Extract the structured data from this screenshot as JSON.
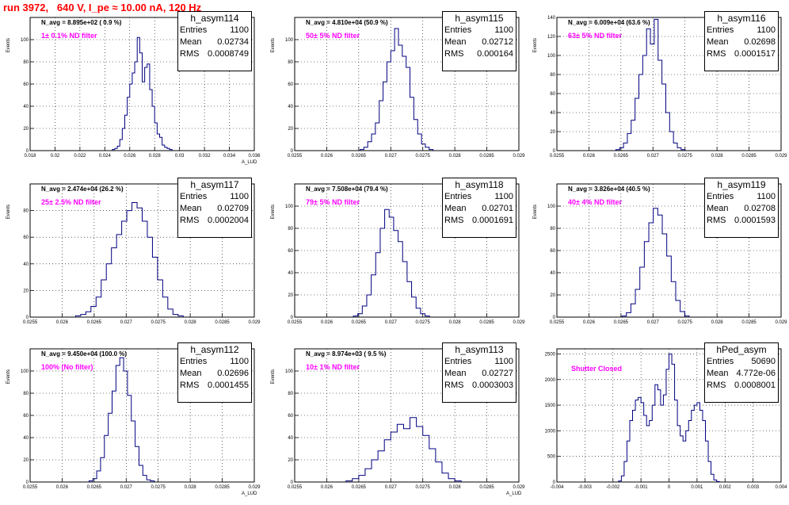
{
  "page_title": "run 3972,   640 V, I_pe ≈ 10.00 nA, 120 Hz",
  "stat_labels": {
    "entries": "Entries",
    "mean": "Mean",
    "rms": "RMS"
  },
  "colors": {
    "histogram": "#000080",
    "title": "#ff0000",
    "annotation": "#ff00ff",
    "grid": "#000000"
  },
  "chart_data": [
    {
      "type": "bar",
      "name": "h_asym114",
      "navg": "N_avg = 8.895e+02 ( 0.9 %)",
      "filter": "1± 0.1% ND filter",
      "entries": "1100",
      "mean": "0.02734",
      "rms": "0.0008749",
      "xlabel": "A_LUD",
      "ylabel": "Events",
      "xlim": [
        0.018,
        0.036
      ],
      "ylim": [
        0,
        120
      ],
      "x_ticks": [
        0.018,
        0.02,
        0.022,
        0.024,
        0.026,
        0.028,
        0.03,
        0.032,
        0.034,
        0.036
      ],
      "x_tick_labels": [
        "0.018",
        "0.02",
        "0.022",
        "0.024",
        "0.026",
        "0.028",
        "0.03",
        "0.032",
        "0.034",
        "0.036"
      ],
      "y_ticks": [
        0,
        20,
        40,
        60,
        80,
        100
      ],
      "y_tick_labels": [
        "0",
        "20",
        "40",
        "60",
        "80",
        "100"
      ],
      "grid": true,
      "hist_x": [
        0.0247,
        0.0249,
        0.0251,
        0.0253,
        0.0255,
        0.0257,
        0.0259,
        0.0261,
        0.0263,
        0.0265,
        0.0267,
        0.0269,
        0.0271,
        0.0273,
        0.0275,
        0.0277,
        0.0279,
        0.0281,
        0.0283,
        0.0285,
        0.0287,
        0.0289,
        0.0291,
        0.0293
      ],
      "hist_y": [
        1,
        2,
        4,
        10,
        20,
        32,
        48,
        60,
        70,
        80,
        102,
        88,
        62,
        75,
        78,
        55,
        40,
        25,
        15,
        12,
        5,
        3,
        2,
        1
      ]
    },
    {
      "type": "bar",
      "name": "h_asym115",
      "navg": "N_avg = 4.810e+04 (50.9 %)",
      "filter": "50± 5% ND filter",
      "entries": "1100",
      "mean": "0.02712",
      "rms": "0.000164",
      "xlabel": "",
      "ylabel": "Events",
      "xlim": [
        0.0255,
        0.029
      ],
      "ylim": [
        0,
        120
      ],
      "x_ticks": [
        0.0255,
        0.026,
        0.0265,
        0.027,
        0.0275,
        0.028,
        0.0285,
        0.029
      ],
      "x_tick_labels": [
        "0.0255",
        "0.026",
        "0.0265",
        "0.027",
        "0.0275",
        "0.028",
        "0.0285",
        "0.029"
      ],
      "y_ticks": [
        0,
        20,
        40,
        60,
        80,
        100
      ],
      "y_tick_labels": [
        "0",
        "20",
        "40",
        "60",
        "80",
        "100"
      ],
      "grid": true,
      "hist_x": [
        0.02655,
        0.02661,
        0.02667,
        0.02673,
        0.02679,
        0.02685,
        0.02691,
        0.02697,
        0.02703,
        0.02709,
        0.02715,
        0.02721,
        0.02727,
        0.02733,
        0.02739,
        0.02745,
        0.02751,
        0.02757,
        0.02763
      ],
      "hist_y": [
        1,
        3,
        8,
        15,
        25,
        45,
        62,
        80,
        90,
        110,
        95,
        85,
        75,
        48,
        28,
        15,
        6,
        3,
        1
      ]
    },
    {
      "type": "bar",
      "name": "h_asym116",
      "navg": "N_avg = 6.009e+04 (63.6 %)",
      "filter": "63± 5% ND filter",
      "entries": "1100",
      "mean": "0.02698",
      "rms": "0.0001517",
      "xlabel": "",
      "ylabel": "Events",
      "xlim": [
        0.0255,
        0.029
      ],
      "ylim": [
        0,
        140
      ],
      "x_ticks": [
        0.0255,
        0.026,
        0.0265,
        0.027,
        0.0275,
        0.028,
        0.0285,
        0.029
      ],
      "x_tick_labels": [
        "0.0255",
        "0.026",
        "0.0265",
        "0.027",
        "0.0275",
        "0.028",
        "0.0285",
        "0.029"
      ],
      "y_ticks": [
        0,
        20,
        40,
        60,
        80,
        100,
        120,
        140
      ],
      "y_tick_labels": [
        "0",
        "20",
        "40",
        "60",
        "80",
        "100",
        "120",
        "140"
      ],
      "grid": true,
      "hist_x": [
        0.02645,
        0.02651,
        0.02657,
        0.02663,
        0.02669,
        0.02675,
        0.02681,
        0.02687,
        0.02693,
        0.02699,
        0.02705,
        0.02711,
        0.02717,
        0.02723,
        0.02729,
        0.02735,
        0.02741,
        0.02747
      ],
      "hist_y": [
        1,
        3,
        8,
        18,
        32,
        55,
        80,
        100,
        128,
        112,
        138,
        95,
        70,
        40,
        20,
        8,
        3,
        1
      ]
    },
    {
      "type": "bar",
      "name": "h_asym117",
      "navg": "N_avg = 2.474e+04 (26.2 %)",
      "filter": "25± 2.5% ND filter",
      "entries": "1100",
      "mean": "0.02709",
      "rms": "0.0002004",
      "xlabel": "",
      "ylabel": "Events",
      "xlim": [
        0.0255,
        0.029
      ],
      "ylim": [
        0,
        100
      ],
      "x_ticks": [
        0.0255,
        0.026,
        0.0265,
        0.027,
        0.0275,
        0.028,
        0.0285,
        0.029
      ],
      "x_tick_labels": [
        "0.0255",
        "0.026",
        "0.0265",
        "0.027",
        "0.0275",
        "0.028",
        "0.0285",
        "0.029"
      ],
      "y_ticks": [
        0,
        20,
        40,
        60,
        80
      ],
      "y_tick_labels": [
        "0",
        "20",
        "40",
        "60",
        "80"
      ],
      "grid": true,
      "hist_x": [
        0.02625,
        0.02633,
        0.02641,
        0.02649,
        0.02657,
        0.02665,
        0.02673,
        0.02681,
        0.02689,
        0.02697,
        0.02705,
        0.02713,
        0.02721,
        0.02729,
        0.02737,
        0.02745,
        0.02753,
        0.02761,
        0.02769,
        0.02777,
        0.02785
      ],
      "hist_y": [
        1,
        2,
        4,
        8,
        15,
        28,
        40,
        52,
        62,
        72,
        80,
        86,
        82,
        72,
        60,
        45,
        28,
        15,
        6,
        2,
        1
      ]
    },
    {
      "type": "bar",
      "name": "h_asym118",
      "navg": "N_avg = 7.508e+04 (79.4 %)",
      "filter": "79± 5% ND filter",
      "entries": "1100",
      "mean": "0.02701",
      "rms": "0.0001691",
      "xlabel": "",
      "ylabel": "Events",
      "xlim": [
        0.0255,
        0.029
      ],
      "ylim": [
        0,
        120
      ],
      "x_ticks": [
        0.0255,
        0.026,
        0.0265,
        0.027,
        0.0275,
        0.028,
        0.0285,
        0.029
      ],
      "x_tick_labels": [
        "0.0255",
        "0.026",
        "0.0265",
        "0.027",
        "0.0275",
        "0.028",
        "0.0285",
        "0.029"
      ],
      "y_ticks": [
        0,
        20,
        40,
        60,
        80,
        100
      ],
      "y_tick_labels": [
        "0",
        "20",
        "40",
        "60",
        "80",
        "100"
      ],
      "grid": true,
      "hist_x": [
        0.02645,
        0.02652,
        0.02659,
        0.02666,
        0.02673,
        0.0268,
        0.02687,
        0.02694,
        0.02701,
        0.02708,
        0.02715,
        0.02722,
        0.02729,
        0.02736,
        0.02743,
        0.0275,
        0.02757
      ],
      "hist_y": [
        1,
        3,
        10,
        20,
        38,
        58,
        80,
        97,
        90,
        78,
        68,
        50,
        32,
        18,
        8,
        3,
        1
      ]
    },
    {
      "type": "bar",
      "name": "h_asym119",
      "navg": "N_avg = 3.826e+04 (40.5 %)",
      "filter": "40± 4% ND filter",
      "entries": "1100",
      "mean": "0.02708",
      "rms": "0.0001593",
      "xlabel": "",
      "ylabel": "Events",
      "xlim": [
        0.0255,
        0.029
      ],
      "ylim": [
        0,
        120
      ],
      "x_ticks": [
        0.0255,
        0.026,
        0.0265,
        0.027,
        0.0275,
        0.028,
        0.0285,
        0.029
      ],
      "x_tick_labels": [
        "0.0255",
        "0.026",
        "0.0265",
        "0.027",
        "0.0275",
        "0.028",
        "0.0285",
        "0.029"
      ],
      "y_ticks": [
        0,
        20,
        40,
        60,
        80,
        100
      ],
      "y_tick_labels": [
        "0",
        "20",
        "40",
        "60",
        "80",
        "100"
      ],
      "grid": true,
      "hist_x": [
        0.02655,
        0.02662,
        0.02669,
        0.02676,
        0.02683,
        0.0269,
        0.02697,
        0.02704,
        0.02711,
        0.02718,
        0.02725,
        0.02732,
        0.02739,
        0.02746,
        0.02753
      ],
      "hist_y": [
        1,
        4,
        12,
        25,
        45,
        68,
        85,
        98,
        92,
        75,
        55,
        32,
        15,
        5,
        1
      ]
    },
    {
      "type": "bar",
      "name": "h_asym112",
      "navg": "N_avg = 9.450e+04 (100.0 %)",
      "filter": "100% (No filter)",
      "entries": "1100",
      "mean": "0.02696",
      "rms": "0.0001455",
      "xlabel": "A_LUD",
      "ylabel": "Events",
      "xlim": [
        0.0255,
        0.029
      ],
      "ylim": [
        0,
        120
      ],
      "x_ticks": [
        0.0255,
        0.026,
        0.0265,
        0.027,
        0.0275,
        0.028,
        0.0285,
        0.029
      ],
      "x_tick_labels": [
        "0.0255",
        "0.026",
        "0.0265",
        "0.027",
        "0.0275",
        "0.028",
        "0.0285",
        "0.029"
      ],
      "y_ticks": [
        0,
        20,
        40,
        60,
        80,
        100
      ],
      "y_tick_labels": [
        "0",
        "20",
        "40",
        "60",
        "80",
        "100"
      ],
      "grid": true,
      "hist_x": [
        0.02645,
        0.02651,
        0.02657,
        0.02663,
        0.02669,
        0.02675,
        0.02681,
        0.02687,
        0.02693,
        0.02699,
        0.02705,
        0.02711,
        0.02717,
        0.02723,
        0.02729,
        0.02735,
        0.02741
      ],
      "hist_y": [
        1,
        3,
        10,
        22,
        42,
        62,
        82,
        105,
        112,
        100,
        78,
        55,
        32,
        15,
        6,
        2,
        1
      ]
    },
    {
      "type": "bar",
      "name": "h_asym113",
      "navg": "N_avg = 8.974e+03 ( 9.5 %)",
      "filter": "10± 1% ND filter",
      "entries": "1100",
      "mean": "0.02727",
      "rms": "0.0003003",
      "xlabel": "A_LUD",
      "ylabel": "Events",
      "xlim": [
        0.0255,
        0.029
      ],
      "ylim": [
        0,
        120
      ],
      "x_ticks": [
        0.0255,
        0.026,
        0.0265,
        0.027,
        0.0275,
        0.028,
        0.0285,
        0.029
      ],
      "x_tick_labels": [
        "0.0255",
        "0.026",
        "0.0265",
        "0.027",
        "0.0275",
        "0.028",
        "0.0285",
        "0.029"
      ],
      "y_ticks": [
        0,
        20,
        40,
        60,
        80,
        100
      ],
      "y_tick_labels": [
        "0",
        "20",
        "40",
        "60",
        "80",
        "100"
      ],
      "grid": true,
      "hist_x": [
        0.02635,
        0.02645,
        0.02655,
        0.02665,
        0.02675,
        0.02685,
        0.02695,
        0.02705,
        0.02715,
        0.02725,
        0.02735,
        0.02745,
        0.02755,
        0.02765,
        0.02775,
        0.02785,
        0.02795,
        0.02805
      ],
      "hist_y": [
        1,
        3,
        6,
        12,
        20,
        28,
        38,
        45,
        52,
        48,
        58,
        50,
        42,
        30,
        18,
        8,
        3,
        1
      ]
    },
    {
      "type": "bar",
      "name": "hPed_asym",
      "navg": "",
      "filter": "Shutter Closed",
      "entries": "50690",
      "mean": "4.772e-06",
      "rms": "0.0008001",
      "xlabel": "",
      "ylabel": "",
      "xlim": [
        -0.004,
        0.004
      ],
      "ylim": [
        0,
        2600
      ],
      "x_ticks": [
        -0.004,
        -0.003,
        -0.002,
        -0.001,
        0,
        0.001,
        0.002,
        0.003,
        0.004
      ],
      "x_tick_labels": [
        "-0.004",
        "-0.003",
        "-0.002",
        "-0.001",
        "0",
        "0.001",
        "0.002",
        "0.003",
        "0.004"
      ],
      "y_ticks": [
        0,
        500,
        1000,
        1500,
        2000,
        2500
      ],
      "y_tick_labels": [
        "0",
        "500",
        "1000",
        "1500",
        "2000",
        "2500"
      ],
      "grid": true,
      "hist_x": [
        -0.00175,
        -0.00165,
        -0.00155,
        -0.00145,
        -0.00135,
        -0.00125,
        -0.00115,
        -0.00105,
        -0.00095,
        -0.00085,
        -0.00075,
        -0.00065,
        -0.00055,
        -0.00045,
        -0.00035,
        -0.00025,
        -0.00015,
        -5e-05,
        5e-05,
        0.00015,
        0.00025,
        0.00035,
        0.00045,
        0.00055,
        0.00065,
        0.00075,
        0.00085,
        0.00095,
        0.00105,
        0.00115,
        0.00125,
        0.00135,
        0.00145,
        0.00155,
        0.00165,
        0.00175
      ],
      "hist_y": [
        20,
        120,
        400,
        800,
        1200,
        1400,
        1600,
        1650,
        1550,
        1300,
        1100,
        1200,
        1500,
        1900,
        1800,
        1500,
        1700,
        2200,
        2500,
        2300,
        1600,
        1100,
        900,
        800,
        1000,
        1200,
        1400,
        1500,
        1550,
        1400,
        1200,
        800,
        400,
        150,
        40,
        10
      ]
    }
  ]
}
